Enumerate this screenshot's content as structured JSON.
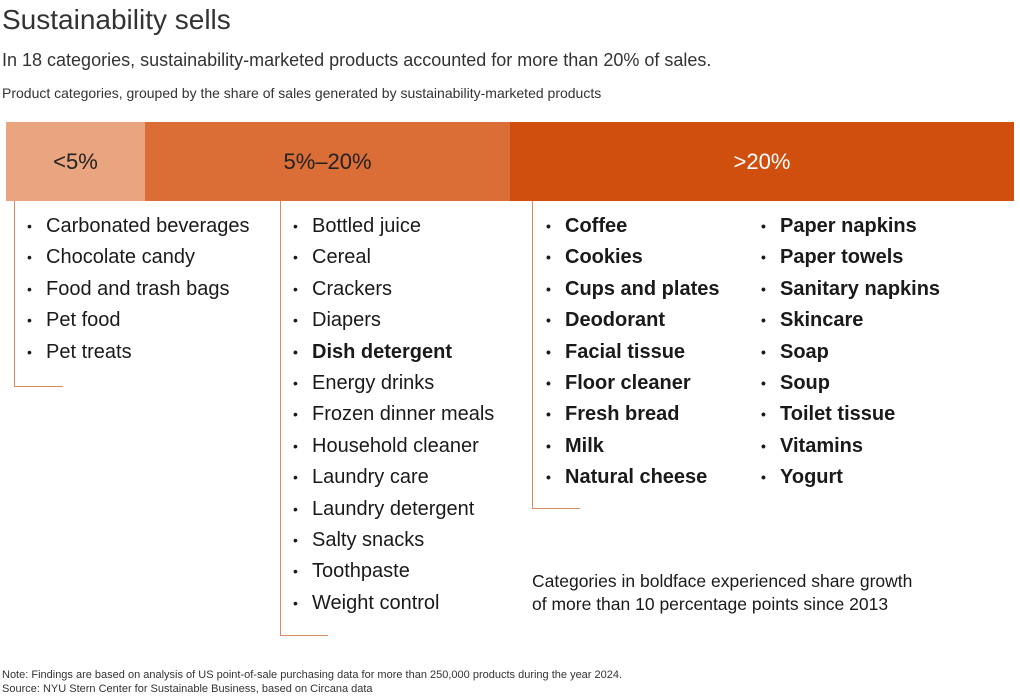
{
  "title": "Sustainability sells",
  "subtitle": "In 18 categories, sustainability-marketed products accounted for more than 20% of sales.",
  "description": "Product categories, grouped by the share of sales generated by sustainability-marketed products",
  "colors": {
    "band_low": "#E9A580",
    "band_mid": "#DB6D36",
    "band_high": "#D04E0E",
    "bracket": "#DB8A60"
  },
  "groups": {
    "low": {
      "label": "<5%",
      "items": [
        "Carbonated beverages",
        "Chocolate candy",
        "Food and trash bags",
        "Pet food",
        "Pet treats"
      ]
    },
    "mid": {
      "label": "5%–20%",
      "items": [
        "Bottled juice",
        "Cereal",
        "Crackers",
        "Diapers",
        "Dish detergent",
        "Energy drinks",
        "Frozen dinner meals",
        "Household cleaner",
        "Laundry care",
        "Laundry detergent",
        "Salty snacks",
        "Toothpaste",
        "Weight control"
      ],
      "bold_items": [
        "Dish detergent"
      ]
    },
    "high": {
      "label": ">20%",
      "items_col1": [
        "Coffee",
        "Cookies",
        "Cups and plates",
        "Deodorant",
        "Facial tissue",
        "Floor cleaner",
        "Fresh bread",
        "Milk",
        "Natural cheese"
      ],
      "items_col2": [
        "Paper napkins",
        "Paper towels",
        "Sanitary napkins",
        "Skincare",
        "Soap",
        "Soup",
        "Toilet tissue",
        "Vitamins",
        "Yogurt"
      ]
    }
  },
  "legend_note": {
    "line1": "Categories in boldface experienced share growth",
    "line2": "of more than 10 percentage points since 2013"
  },
  "note": "Note: Findings are based on analysis of US point-of-sale purchasing data for more than 250,000 products during the year 2024.",
  "source": "Source: NYU Stern Center for Sustainable Business, based on Circana data"
}
